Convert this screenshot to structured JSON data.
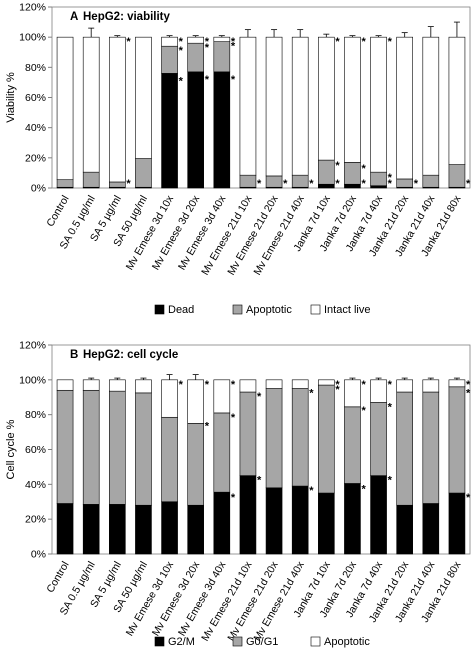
{
  "chart_data": [
    {
      "type": "bar",
      "stacked": true,
      "panel_label": "A",
      "title": "HepG2: viability",
      "ylabel": "Viability %",
      "ylim": [
        0,
        120
      ],
      "yticks": [
        "0%",
        "20%",
        "40%",
        "60%",
        "80%",
        "100%",
        "120%"
      ],
      "categories": [
        "Control",
        "SA 0.5 µg/ml",
        "SA 5 µg/ml",
        "SA 50 µg/ml",
        "Mv Emese 3d 10x",
        "Mv Emese 3d 20x",
        "Mv Emese 3d 40x",
        "Mv Emese 21d 10x",
        "Mv Emese 21d 20x",
        "Mv Emese 21d 40x",
        "Janka 7d 10x",
        "Janka 7d 20x",
        "Janka 7d 40x",
        "Janka 21d 20x",
        "Janka 21d 40x",
        "Janka 21d 80x"
      ],
      "legend_position": "bottom",
      "series": [
        {
          "name": "Dead",
          "color": "#000000",
          "values": [
            0.5,
            0.5,
            0.5,
            0.5,
            76,
            77,
            77,
            0.5,
            0.5,
            0.5,
            2.5,
            2.5,
            1.5,
            0.5,
            0.5,
            0.5
          ]
        },
        {
          "name": "Apoptotic",
          "color": "#a6a6a6",
          "values": [
            5,
            10,
            3.5,
            19,
            18,
            19,
            20,
            8,
            7.5,
            8,
            16,
            14.5,
            9,
            5.5,
            8,
            15
          ]
        },
        {
          "name": "Intact live",
          "color": "#ffffff",
          "values": [
            94.5,
            89.5,
            96,
            80.5,
            6,
            4,
            3,
            91.5,
            92,
            91.5,
            81.5,
            83,
            89.5,
            94,
            91.5,
            84.5
          ]
        }
      ],
      "error_top": [
        0,
        6,
        1,
        0,
        1,
        1,
        1,
        5,
        5,
        5,
        2,
        1,
        1,
        3,
        7,
        10
      ],
      "annotations": [
        {
          "category": 2,
          "value": 4,
          "text": "*"
        },
        {
          "category": 2,
          "value": 100,
          "text": "*"
        },
        {
          "category": 4,
          "value": 74,
          "text": "*"
        },
        {
          "category": 4,
          "value": 94,
          "text": "*"
        },
        {
          "category": 4,
          "value": 100,
          "text": "*"
        },
        {
          "category": 5,
          "value": 75,
          "text": "*"
        },
        {
          "category": 5,
          "value": 96,
          "text": "*"
        },
        {
          "category": 5,
          "value": 100,
          "text": "*"
        },
        {
          "category": 6,
          "value": 75,
          "text": "*"
        },
        {
          "category": 6,
          "value": 97,
          "text": "*"
        },
        {
          "category": 6,
          "value": 100,
          "text": "*"
        },
        {
          "category": 7,
          "value": 0,
          "text": "*"
        },
        {
          "category": 8,
          "value": 0,
          "text": "*"
        },
        {
          "category": 9,
          "value": 0,
          "text": "*"
        },
        {
          "category": 10,
          "value": 2,
          "text": "*"
        },
        {
          "category": 10,
          "value": 18,
          "text": "*"
        },
        {
          "category": 10,
          "value": 100,
          "text": "*"
        },
        {
          "category": 11,
          "value": 2,
          "text": "*"
        },
        {
          "category": 11,
          "value": 16,
          "text": "*"
        },
        {
          "category": 11,
          "value": 100,
          "text": "*"
        },
        {
          "category": 12,
          "value": 1,
          "text": "*"
        },
        {
          "category": 12,
          "value": 10,
          "text": "*"
        },
        {
          "category": 12,
          "value": 100,
          "text": "*"
        },
        {
          "category": 13,
          "value": 0,
          "text": "*"
        },
        {
          "category": 15,
          "value": 0,
          "text": "*"
        }
      ]
    },
    {
      "type": "bar",
      "stacked": true,
      "panel_label": "B",
      "title": "HepG2: cell cycle",
      "ylabel": "Cell cycle %",
      "ylim": [
        0,
        120
      ],
      "yticks": [
        "0%",
        "20%",
        "40%",
        "60%",
        "80%",
        "100%",
        "120%"
      ],
      "categories": [
        "Control",
        "SA 0.5 µg/ml",
        "SA 5 µg/ml",
        "SA 50 µg/ml",
        "Mv Emese 3d 10x",
        "Mv Emese 3d 20x",
        "Mv Emese 3d 40x",
        "Mv Emese 21d 10x",
        "Mv Emese 21d 20x",
        "Mv Emese 21d 40x",
        "Janka 7d 10x",
        "Janka 7d 20x",
        "Janka 7d 40x",
        "Janka 21d 20x",
        "Janka 21d 40x",
        "Janka 21d 80x"
      ],
      "legend_position": "bottom",
      "series": [
        {
          "name": "G2/M",
          "color": "#000000",
          "values": [
            29,
            28.5,
            28.5,
            28,
            30,
            28,
            35.5,
            45,
            38,
            39,
            35,
            40.5,
            45,
            28,
            29,
            35
          ]
        },
        {
          "name": "G0/G1",
          "color": "#a6a6a6",
          "values": [
            65,
            65.5,
            65,
            64.5,
            48.5,
            47,
            45.5,
            48,
            57,
            56,
            62,
            44,
            42,
            65,
            64,
            61
          ]
        },
        {
          "name": "Apoptotic",
          "color": "#ffffff",
          "values": [
            6,
            6,
            6.5,
            7.5,
            21.5,
            25,
            19,
            7,
            5,
            5,
            3,
            15.5,
            13,
            7,
            7,
            4
          ]
        }
      ],
      "error_top": [
        0,
        1,
        1,
        1,
        3,
        3,
        0,
        0,
        0,
        0,
        0,
        1,
        1,
        1,
        1,
        1
      ],
      "annotations": [
        {
          "category": 4,
          "value": 100,
          "text": "*"
        },
        {
          "category": 5,
          "value": 100,
          "text": "*"
        },
        {
          "category": 5,
          "value": 76,
          "text": "*"
        },
        {
          "category": 6,
          "value": 100,
          "text": "*"
        },
        {
          "category": 6,
          "value": 81,
          "text": "*"
        },
        {
          "category": 6,
          "value": 35,
          "text": "*"
        },
        {
          "category": 7,
          "value": 93,
          "text": "*"
        },
        {
          "category": 7,
          "value": 45,
          "text": "*"
        },
        {
          "category": 9,
          "value": 95,
          "text": "*"
        },
        {
          "category": 9,
          "value": 39,
          "text": "*"
        },
        {
          "category": 10,
          "value": 100,
          "text": "*"
        },
        {
          "category": 10,
          "value": 97,
          "text": "*"
        },
        {
          "category": 11,
          "value": 100,
          "text": "*"
        },
        {
          "category": 11,
          "value": 85,
          "text": "*"
        },
        {
          "category": 11,
          "value": 40,
          "text": "*"
        },
        {
          "category": 12,
          "value": 100,
          "text": "*"
        },
        {
          "category": 12,
          "value": 87,
          "text": "*"
        },
        {
          "category": 12,
          "value": 45,
          "text": "*"
        },
        {
          "category": 15,
          "value": 100,
          "text": "*"
        },
        {
          "category": 15,
          "value": 95,
          "text": "*"
        },
        {
          "category": 15,
          "value": 35,
          "text": "*"
        }
      ]
    }
  ]
}
